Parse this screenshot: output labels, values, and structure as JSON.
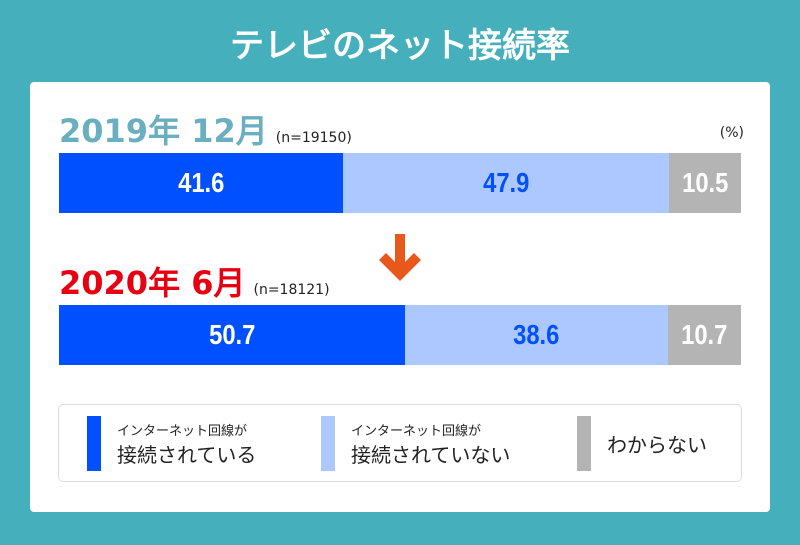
{
  "title": "テレビのネット接続率",
  "colors": {
    "background": "#45b0bc",
    "connected": "#0050ff",
    "not_connected": "#adc8ff",
    "unknown": "#b4b4b4",
    "period1": "#6aafbf",
    "period2": "#e60012",
    "arrow": "#e8581a"
  },
  "chart_data": {
    "type": "bar",
    "stacked": true,
    "orientation": "horizontal",
    "unit": "(%)",
    "categories": [
      "2019年 12月",
      "2020年 6月"
    ],
    "samples": [
      "(n=19150)",
      "(n=18121)"
    ],
    "series": [
      {
        "name": "インターネット回線が接続されている",
        "values": [
          41.6,
          50.7
        ],
        "color": "#0050ff"
      },
      {
        "name": "インターネット回線が接続されていない",
        "values": [
          47.9,
          38.6
        ],
        "color": "#adc8ff"
      },
      {
        "name": "わからない",
        "values": [
          10.5,
          10.7
        ],
        "color": "#b4b4b4"
      }
    ]
  },
  "legend": [
    {
      "small": "インターネット回線が",
      "big": "接続されている"
    },
    {
      "small": "インターネット回線が",
      "big": "接続されていない"
    },
    {
      "small": "",
      "big": "わからない"
    }
  ]
}
